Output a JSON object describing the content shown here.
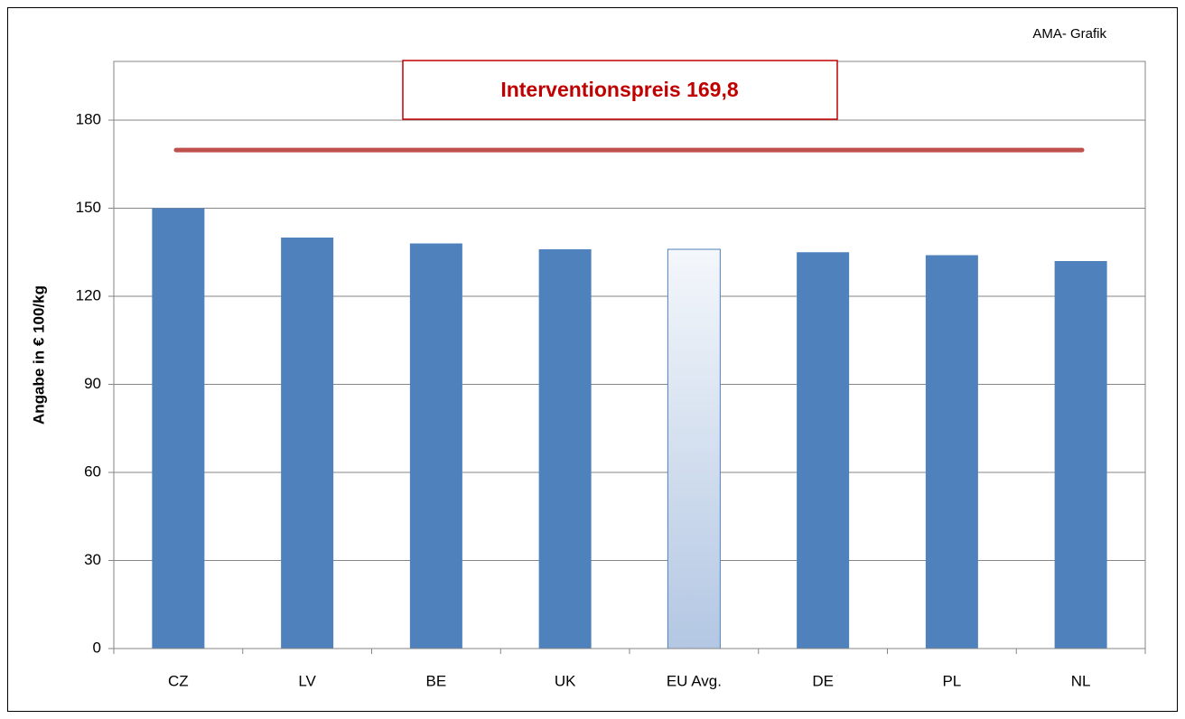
{
  "chart_data": {
    "type": "bar",
    "source": "AMA- Grafik",
    "ylabel": "Angabe in € 100/kg",
    "categories": [
      "CZ",
      "LV",
      "BE",
      "UK",
      "EU Avg.",
      "DE",
      "PL",
      "NL"
    ],
    "values": [
      150,
      140,
      138,
      136,
      136,
      135,
      134,
      132
    ],
    "color": "#4f81bd",
    "highlight": 4,
    "highlight_color": "#b3c7e3",
    "ylim": [
      0,
      200
    ],
    "yticks": [
      0,
      30,
      60,
      90,
      120,
      150,
      180
    ],
    "grid": true,
    "reference_line": {
      "value": 169.8,
      "label": "Interventionspreis 169,8",
      "color": "#c0504d"
    }
  }
}
